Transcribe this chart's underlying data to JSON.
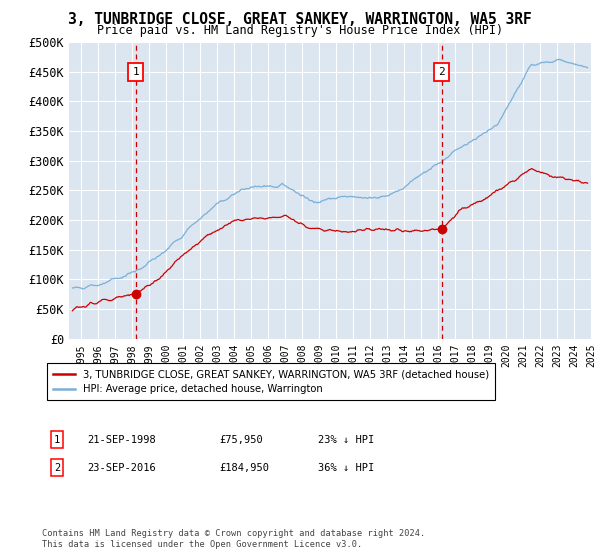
{
  "title": "3, TUNBRIDGE CLOSE, GREAT SANKEY, WARRINGTON, WA5 3RF",
  "subtitle": "Price paid vs. HM Land Registry's House Price Index (HPI)",
  "ylabel_ticks": [
    "£0",
    "£50K",
    "£100K",
    "£150K",
    "£200K",
    "£250K",
    "£300K",
    "£350K",
    "£400K",
    "£450K",
    "£500K"
  ],
  "ytick_values": [
    0,
    50000,
    100000,
    150000,
    200000,
    250000,
    300000,
    350000,
    400000,
    450000,
    500000
  ],
  "ylim": [
    0,
    500000
  ],
  "xlim_start": 1994.8,
  "xlim_end": 2025.5,
  "bg_color": "#dce6f1",
  "grid_color": "#ffffff",
  "hpi_color": "#7ab0d8",
  "price_color": "#cc0000",
  "marker1_date": 1998.72,
  "marker1_price": 75950,
  "marker2_date": 2016.72,
  "marker2_price": 184950,
  "legend_line1": "3, TUNBRIDGE CLOSE, GREAT SANKEY, WARRINGTON, WA5 3RF (detached house)",
  "legend_line2": "HPI: Average price, detached house, Warrington",
  "note1_label": "1",
  "note1_date": "21-SEP-1998",
  "note1_price": "£75,950",
  "note1_hpi": "23% ↓ HPI",
  "note2_label": "2",
  "note2_date": "23-SEP-2016",
  "note2_price": "£184,950",
  "note2_hpi": "36% ↓ HPI",
  "footer": "Contains HM Land Registry data © Crown copyright and database right 2024.\nThis data is licensed under the Open Government Licence v3.0."
}
